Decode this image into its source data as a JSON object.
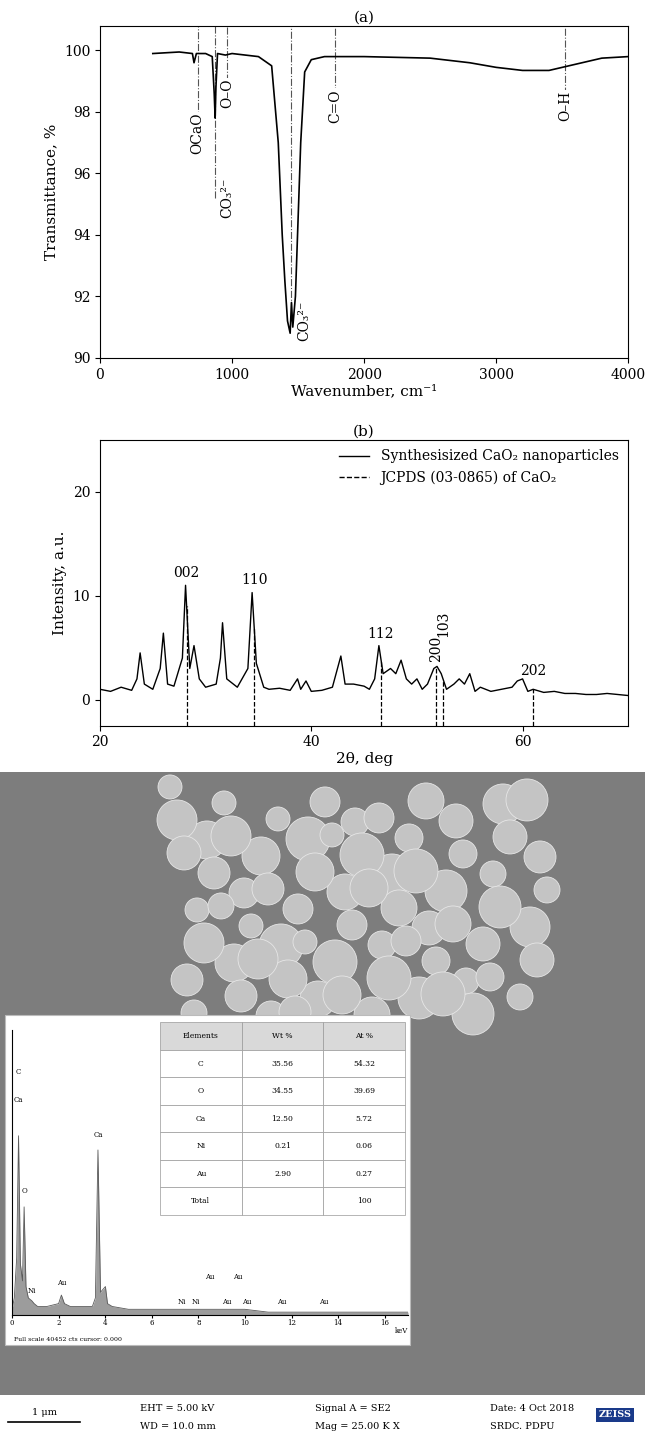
{
  "chart_data": [
    {
      "type": "line",
      "title": "(a)",
      "x_label": "Wavenumber, cm⁻¹",
      "y_label": "Transmittance, %",
      "color": "#000000",
      "x": [
        400,
        600,
        700,
        712,
        730,
        800,
        850,
        865,
        872,
        878,
        890,
        950,
        1000,
        1100,
        1200,
        1300,
        1350,
        1380,
        1400,
        1420,
        1440,
        1450,
        1460,
        1480,
        1500,
        1520,
        1550,
        1600,
        1700,
        1800,
        2000,
        2500,
        2800,
        3000,
        3200,
        3400,
        3500,
        3600,
        3800,
        4000
      ],
      "values": [
        99.9,
        99.95,
        99.9,
        99.6,
        99.9,
        99.9,
        99.8,
        98.6,
        97.8,
        98.8,
        99.9,
        99.85,
        99.9,
        99.85,
        99.8,
        99.5,
        97,
        94,
        92.5,
        91.2,
        90.8,
        91.8,
        91.0,
        92,
        94.5,
        97,
        99.3,
        99.7,
        99.8,
        99.8,
        99.8,
        99.75,
        99.6,
        99.45,
        99.35,
        99.35,
        99.45,
        99.55,
        99.75,
        99.8
      ],
      "xlim": [
        0,
        4000
      ],
      "xticks": [
        0,
        1000,
        2000,
        3000,
        4000
      ],
      "ylim": [
        90,
        100.8
      ],
      "yticks": [
        90,
        92,
        94,
        96,
        98,
        100
      ],
      "annotations": [
        {
          "x": 740,
          "y": 97.3,
          "text": "OCaO"
        },
        {
          "x": 870,
          "y": 95.2,
          "text": "CO₃²⁻"
        },
        {
          "x": 960,
          "y": 98.6,
          "text": "O–O"
        },
        {
          "x": 1780,
          "y": 98.2,
          "text": "C=O"
        },
        {
          "x": 3520,
          "y": 98.2,
          "text": "O–H"
        },
        {
          "x": 1450,
          "y": 91.2,
          "text": "CO₃²⁻"
        }
      ]
    },
    {
      "type": "line",
      "title": "(b)",
      "x_label": "2θ, deg",
      "y_label": "Intensity, a.u.",
      "legend": "upper right",
      "xlim": [
        20,
        70
      ],
      "xticks": [
        20,
        40,
        60
      ],
      "ylim": [
        -2.5,
        25
      ],
      "yticks": [
        0,
        10,
        20
      ],
      "series": [
        {
          "name": "Synthesisized CaO₂ nanoparticles",
          "color": "#000000",
          "line_style": "solid",
          "x": [
            20,
            21,
            22,
            23,
            23.5,
            23.8,
            24.2,
            25,
            25.7,
            26,
            26.4,
            27,
            27.8,
            28.1,
            28.5,
            28.9,
            29.4,
            30,
            31,
            31.4,
            31.6,
            32,
            33,
            34,
            34.4,
            34.8,
            35.5,
            36,
            37,
            38,
            38.7,
            39,
            39.5,
            40,
            41,
            42,
            42.8,
            43.2,
            44,
            45,
            45.5,
            46,
            46.4,
            46.8,
            47.5,
            48,
            48.5,
            49,
            49.5,
            50,
            50.5,
            51,
            51.6,
            51.9,
            52.3,
            52.8,
            53.5,
            54,
            54.5,
            55,
            55.5,
            56,
            57,
            58,
            59,
            59.5,
            60,
            60.5,
            61,
            62,
            63,
            64,
            65,
            66,
            67,
            68,
            69,
            70
          ],
          "values": [
            1.0,
            0.8,
            1.2,
            0.9,
            2.0,
            4.5,
            1.5,
            1.0,
            3.0,
            6.4,
            1.5,
            1.3,
            4.0,
            11.0,
            3.0,
            5.2,
            2.0,
            1.2,
            1.5,
            4.0,
            7.4,
            2.0,
            1.2,
            3.0,
            10.3,
            3.5,
            1.2,
            1.0,
            1.1,
            0.9,
            2.0,
            1.0,
            1.8,
            0.8,
            0.9,
            1.2,
            4.2,
            1.5,
            1.5,
            1.3,
            1.0,
            2.0,
            5.2,
            2.5,
            3.0,
            2.5,
            3.8,
            2.0,
            1.5,
            2.0,
            1.0,
            1.5,
            3.0,
            3.2,
            2.5,
            1.0,
            1.5,
            2.0,
            1.5,
            2.5,
            0.8,
            1.2,
            0.8,
            1.0,
            1.2,
            1.8,
            2.0,
            0.8,
            1.0,
            0.7,
            0.8,
            0.6,
            0.6,
            0.5,
            0.5,
            0.6,
            0.5,
            0.4
          ]
        },
        {
          "name": "JCPDS (03-0865) of CaO₂",
          "color": "#000000",
          "line_style": "dashed",
          "x": [
            28.2,
            34.6,
            46.6,
            51.8,
            52.5,
            61.0
          ],
          "labels": [
            "002",
            "110",
            "112",
            "200",
            "103",
            "202"
          ],
          "label_y": [
            11.5,
            10.8,
            5.6,
            3.6,
            6.0,
            2.1
          ]
        }
      ]
    }
  ],
  "sem_image": {
    "eds": {
      "type": "line",
      "x_label": "keV",
      "caption": "Full scale 40452 cts cursor: 0.000",
      "color": "#5a5a5a",
      "xlim": [
        0,
        17
      ],
      "xticks": [
        0,
        2,
        4,
        6,
        8,
        10,
        12,
        14,
        16
      ],
      "ylim": [
        0,
        100
      ],
      "yticks": [],
      "tick_labels": "x",
      "x": [
        0,
        0.1,
        0.2,
        0.28,
        0.36,
        0.45,
        0.52,
        0.6,
        0.7,
        0.85,
        0.95,
        1.1,
        1.5,
        2.0,
        2.12,
        2.25,
        2.5,
        3.0,
        3.45,
        3.58,
        3.69,
        3.8,
        4.01,
        4.1,
        4.3,
        5,
        6,
        7,
        7.5,
        8,
        8.5,
        9,
        9.7,
        10,
        11,
        12,
        14,
        17
      ],
      "values": [
        2,
        6,
        20,
        63,
        18,
        12,
        38,
        10,
        6,
        5,
        4,
        3,
        3,
        4,
        7,
        4,
        3,
        3,
        3,
        6,
        58,
        8,
        10,
        4,
        3,
        2,
        2,
        2,
        2,
        2,
        2,
        2,
        2,
        2,
        1,
        1,
        1,
        1
      ],
      "peak_labels": [
        {
          "x": 0.28,
          "y": 84,
          "text": "C"
        },
        {
          "x": 0.28,
          "y": 74,
          "text": "Ca"
        },
        {
          "x": 0.52,
          "y": 42,
          "text": "O"
        },
        {
          "x": 0.85,
          "y": 7,
          "text": "Ni"
        },
        {
          "x": 2.12,
          "y": 10,
          "text": "Au"
        },
        {
          "x": 3.69,
          "y": 62,
          "text": "Ca"
        },
        {
          "x": 8.5,
          "y": 12,
          "text": "Au"
        },
        {
          "x": 9.7,
          "y": 12,
          "text": "Au"
        },
        {
          "x": 7.3,
          "y": 3,
          "text": "Ni"
        },
        {
          "x": 7.9,
          "y": 3,
          "text": "Ni"
        },
        {
          "x": 9.2,
          "y": 3,
          "text": "Au"
        },
        {
          "x": 10.1,
          "y": 3,
          "text": "Au"
        },
        {
          "x": 11.6,
          "y": 3,
          "text": "Au"
        },
        {
          "x": 13.4,
          "y": 3,
          "text": "Au"
        }
      ],
      "table": {
        "header": [
          "Elements",
          "Wt %",
          "At %"
        ],
        "rows": [
          [
            "C",
            "35.56",
            "54.32"
          ],
          [
            "O",
            "34.55",
            "39.69"
          ],
          [
            "Ca",
            "12.50",
            "5.72"
          ],
          [
            "Ni",
            "0.21",
            "0.06"
          ],
          [
            "Au",
            "2.90",
            "0.27"
          ],
          [
            "Total",
            null,
            "100"
          ]
        ]
      }
    },
    "footer": {
      "scale_bar": "1 μm",
      "columns": [
        [
          "EHT = 5.00 kV",
          "WD = 10.0 mm"
        ],
        [
          "Signal A = SE2",
          "Mag = 25.00 K X"
        ],
        [
          "Date: 4 Oct 2018",
          "SRDC. PDPU"
        ]
      ],
      "logo": "ZEISS"
    }
  }
}
